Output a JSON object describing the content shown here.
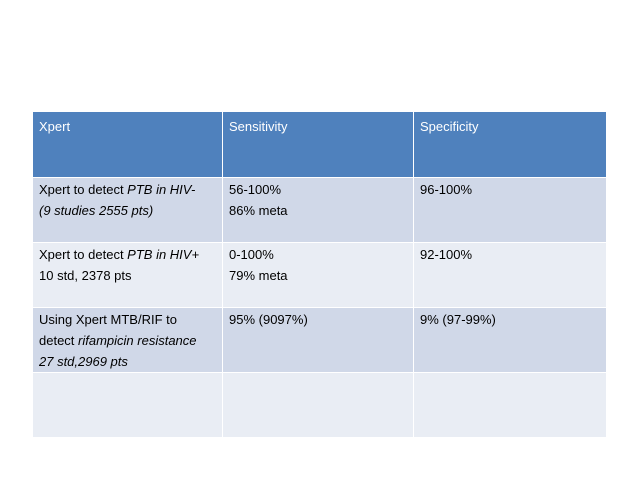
{
  "table": {
    "header": [
      "Xpert",
      "Sensitivity",
      "Specificity"
    ],
    "rows": [
      [
        [
          [
            {
              "text": "Xpert to detect "
            },
            {
              "text": "PTB in HIV-",
              "italic": true
            }
          ],
          [
            {
              "text": "(9 studies 2555 pts)",
              "italic": true
            }
          ]
        ],
        [
          [
            {
              "text": "56-100%"
            }
          ],
          [
            {
              "text": "86% meta"
            }
          ]
        ],
        [
          [
            {
              "text": "96-100%"
            }
          ]
        ]
      ],
      [
        [
          [
            {
              "text": "Xpert to detect "
            },
            {
              "text": "PTB in HIV+",
              "italic": true
            }
          ],
          [
            {
              "text": "10 std, 2378 pts"
            }
          ]
        ],
        [
          [
            {
              "text": "0-100%"
            }
          ],
          [
            {
              "text": "79% meta"
            }
          ]
        ],
        [
          [
            {
              "text": "92-100%"
            }
          ]
        ]
      ],
      [
        [
          [
            {
              "text": "Using Xpert MTB/RIF to"
            }
          ],
          [
            {
              "text": "detect "
            },
            {
              "text": "rifampicin resistance",
              "italic": true
            }
          ],
          [
            {
              "text": "27 std,2969 pts",
              "italic": true
            }
          ]
        ],
        [
          [
            {
              "text": "95% (9097%)"
            }
          ]
        ],
        [
          [
            {
              "text": "9% (97-99%)"
            }
          ]
        ]
      ],
      [
        [],
        [],
        []
      ]
    ]
  }
}
